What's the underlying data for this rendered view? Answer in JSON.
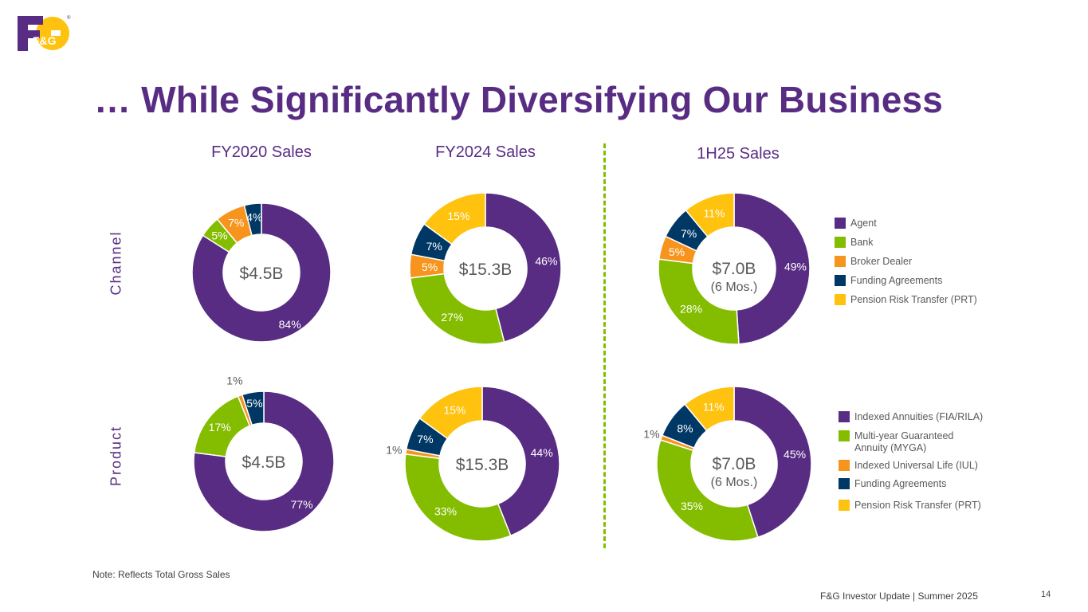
{
  "logo": {
    "text": "F&G",
    "mark": "®"
  },
  "title": "… While Significantly Diversifying Our Business",
  "columns": [
    "FY2020 Sales",
    "FY2024 Sales",
    "1H25 Sales"
  ],
  "rows": [
    "Channel",
    "Product"
  ],
  "colors": {
    "purple": "#582C83",
    "green": "#84BD00",
    "orange": "#F7941D",
    "navy": "#003865",
    "yellow": "#FFC20E"
  },
  "legends": {
    "channel": [
      "Agent",
      "Bank",
      "Broker Dealer",
      "Funding Agreements",
      "Pension Risk Transfer (PRT)"
    ],
    "product": [
      "Indexed Annuities (FIA/RILA)",
      "Multi-year Guaranteed\nAnnuity (MYGA)",
      "Indexed Universal Life (IUL)",
      "Funding Agreements",
      "Pension Risk Transfer (PRT)"
    ]
  },
  "chart_data": [
    {
      "type": "pie",
      "name": "FY2020 Channel",
      "center_label": "$4.5B",
      "sub_label": "",
      "categories": [
        "Agent",
        "Bank",
        "Broker Dealer",
        "Funding Agreements",
        "Pension Risk Transfer (PRT)"
      ],
      "values": [
        84,
        5,
        7,
        4,
        0
      ],
      "labels": [
        "84%",
        "5%",
        "7%",
        "4%",
        ""
      ]
    },
    {
      "type": "pie",
      "name": "FY2024 Channel",
      "center_label": "$15.3B",
      "sub_label": "",
      "categories": [
        "Agent",
        "Bank",
        "Broker Dealer",
        "Funding Agreements",
        "Pension Risk Transfer (PRT)"
      ],
      "values": [
        46,
        27,
        5,
        7,
        15
      ],
      "labels": [
        "46%",
        "27%",
        "5%",
        "7%",
        "15%"
      ]
    },
    {
      "type": "pie",
      "name": "1H25 Channel",
      "center_label": "$7.0B",
      "sub_label": "(6 Mos.)",
      "categories": [
        "Agent",
        "Bank",
        "Broker Dealer",
        "Funding Agreements",
        "Pension Risk Transfer (PRT)"
      ],
      "values": [
        49,
        28,
        5,
        7,
        11
      ],
      "labels": [
        "49%",
        "28%",
        "5%",
        "7%",
        "11%"
      ]
    },
    {
      "type": "pie",
      "name": "FY2020 Product",
      "center_label": "$4.5B",
      "sub_label": "",
      "categories": [
        "Indexed Annuities (FIA/RILA)",
        "Multi-year Guaranteed Annuity (MYGA)",
        "Indexed Universal Life (IUL)",
        "Funding Agreements",
        "Pension Risk Transfer (PRT)"
      ],
      "values": [
        77,
        17,
        1,
        5,
        0
      ],
      "labels": [
        "77%",
        "17%",
        "1%",
        "5%",
        ""
      ]
    },
    {
      "type": "pie",
      "name": "FY2024 Product",
      "center_label": "$15.3B",
      "sub_label": "",
      "categories": [
        "Indexed Annuities (FIA/RILA)",
        "Multi-year Guaranteed Annuity (MYGA)",
        "Indexed Universal Life (IUL)",
        "Funding Agreements",
        "Pension Risk Transfer (PRT)"
      ],
      "values": [
        44,
        33,
        1,
        7,
        15
      ],
      "labels": [
        "44%",
        "33%",
        "1%",
        "7%",
        "15%"
      ]
    },
    {
      "type": "pie",
      "name": "1H25 Product",
      "center_label": "$7.0B",
      "sub_label": "(6 Mos.)",
      "categories": [
        "Indexed Annuities (FIA/RILA)",
        "Multi-year Guaranteed Annuity (MYGA)",
        "Indexed Universal Life (IUL)",
        "Funding Agreements",
        "Pension Risk Transfer (PRT)"
      ],
      "values": [
        45,
        35,
        1,
        8,
        11
      ],
      "labels": [
        "45%",
        "35%",
        "1%",
        "8%",
        "11%"
      ]
    }
  ],
  "note": "Note:  Reflects Total Gross Sales",
  "footer": "F&G Investor Update |  Summer 2025",
  "page_number": "14"
}
